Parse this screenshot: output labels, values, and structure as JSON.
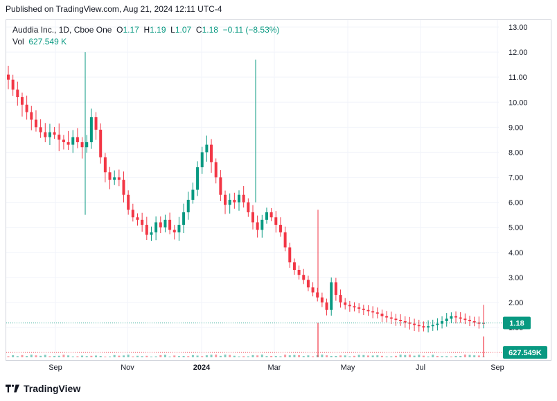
{
  "header": {
    "published": "Published on TradingView.com, Aug 21, 2024 12:11 UTC-4"
  },
  "legend": {
    "symbol": "Auddia Inc., 1D, Cboe One",
    "o_label": "O",
    "o_value": "1.17",
    "h_label": "H",
    "h_value": "1.19",
    "l_label": "L",
    "l_value": "1.07",
    "c_label": "C",
    "c_value": "1.18",
    "change": "−0.11 (−8.53%)",
    "vol_label": "Vol",
    "vol_value": "627.549 K"
  },
  "footer": {
    "brand": "TradingView"
  },
  "colors": {
    "up": "#089981",
    "down": "#f23645",
    "grid": "#f0f3fa",
    "text": "#131722"
  },
  "chart_data": {
    "type": "candlestick",
    "y_ticks": [
      "13.00",
      "12.00",
      "11.00",
      "10.00",
      "9.00",
      "8.00",
      "7.00",
      "6.00",
      "5.00",
      "4.00",
      "3.00",
      "2.00",
      "1.00"
    ],
    "ylim": [
      0.0,
      13.0
    ],
    "x_ticks": [
      {
        "label": "Sep",
        "bold": false
      },
      {
        "label": "Nov",
        "bold": false
      },
      {
        "label": "2024",
        "bold": true
      },
      {
        "label": "Mar",
        "bold": false
      },
      {
        "label": "May",
        "bold": false
      },
      {
        "label": "Jul",
        "bold": false
      },
      {
        "label": "Sep",
        "bold": false
      }
    ],
    "last_price_label": "1.18",
    "last_volume_label": "627.549K",
    "close_series": [
      10.9,
      10.5,
      10.2,
      9.9,
      9.6,
      9.3,
      9.0,
      8.8,
      8.6,
      8.8,
      8.7,
      8.5,
      8.4,
      8.3,
      8.6,
      8.4,
      8.2,
      8.4,
      9.4,
      8.9,
      7.8,
      7.2,
      6.9,
      7.0,
      6.9,
      6.3,
      5.7,
      5.4,
      5.3,
      5.1,
      4.7,
      4.8,
      5.2,
      5.0,
      5.3,
      4.9,
      4.8,
      5.1,
      5.6,
      6.1,
      6.5,
      7.4,
      8.0,
      8.3,
      7.6,
      7.0,
      6.3,
      5.9,
      6.1,
      6.0,
      6.3,
      6.0,
      5.6,
      5.2,
      4.9,
      5.3,
      5.6,
      5.4,
      5.1,
      4.8,
      4.2,
      3.6,
      3.3,
      3.1,
      2.9,
      2.6,
      2.4,
      2.2,
      2.0,
      1.7,
      2.8,
      2.3,
      2.0,
      1.9,
      1.85,
      1.8,
      1.75,
      1.7,
      1.65,
      1.6,
      1.55,
      1.45,
      1.4,
      1.35,
      1.3,
      1.25,
      1.2,
      1.15,
      1.1,
      1.05,
      1.0,
      1.05,
      1.1,
      1.15,
      1.25,
      1.35,
      1.45,
      1.4,
      1.35,
      1.3,
      1.25,
      1.2,
      1.15,
      1.18
    ]
  }
}
